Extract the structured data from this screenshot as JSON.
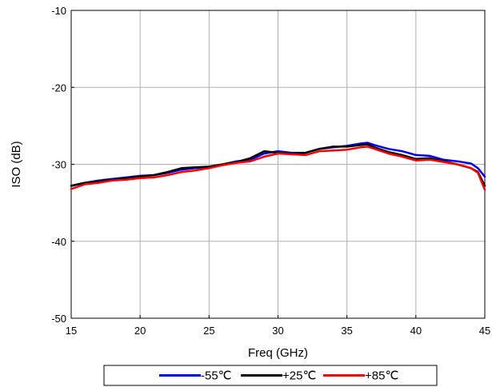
{
  "chart_data": {
    "type": "line",
    "xlabel": "Freq (GHz)",
    "ylabel": "ISO (dB)",
    "xlim": [
      15,
      45
    ],
    "ylim": [
      -50,
      -10
    ],
    "xticks": [
      15,
      20,
      25,
      30,
      35,
      40,
      45
    ],
    "yticks": [
      -50,
      -40,
      -30,
      -20,
      -10
    ],
    "grid": true,
    "legend_position": "bottom",
    "series": [
      {
        "name": "-55℃",
        "color": "#0000ff",
        "x": [
          15,
          16,
          17,
          18,
          19,
          20,
          21,
          22,
          23,
          24,
          25,
          26,
          27,
          28,
          29,
          30,
          31,
          32,
          33,
          34,
          35,
          36,
          36.5,
          37,
          38,
          39,
          40,
          41,
          42,
          43,
          44,
          44.5,
          45
        ],
        "y": [
          -32.8,
          -32.4,
          -32.1,
          -31.9,
          -31.7,
          -31.5,
          -31.4,
          -31.1,
          -30.7,
          -30.5,
          -30.4,
          -30.0,
          -29.6,
          -29.4,
          -28.6,
          -28.3,
          -28.5,
          -28.5,
          -28.0,
          -27.8,
          -27.6,
          -27.3,
          -27.2,
          -27.5,
          -28.0,
          -28.3,
          -28.8,
          -28.9,
          -29.4,
          -29.6,
          -29.9,
          -30.5,
          -31.6
        ]
      },
      {
        "name": "+25℃",
        "color": "#000000",
        "x": [
          15,
          16,
          17,
          18,
          19,
          20,
          21,
          22,
          23,
          24,
          25,
          26,
          27,
          28,
          29,
          30,
          31,
          32,
          33,
          34,
          35,
          36,
          36.5,
          37,
          38,
          39,
          40,
          41,
          42,
          43,
          44,
          44.5,
          45
        ],
        "y": [
          -32.8,
          -32.4,
          -32.2,
          -32.0,
          -31.8,
          -31.6,
          -31.4,
          -31.0,
          -30.5,
          -30.4,
          -30.3,
          -30.0,
          -29.7,
          -29.2,
          -28.3,
          -28.5,
          -28.6,
          -28.5,
          -28.0,
          -27.7,
          -27.7,
          -27.5,
          -27.4,
          -27.8,
          -28.4,
          -28.8,
          -29.3,
          -29.2,
          -29.6,
          -30.0,
          -30.5,
          -31.0,
          -32.8
        ]
      },
      {
        "name": "+85℃",
        "color": "#ff0000",
        "x": [
          15,
          16,
          17,
          18,
          19,
          20,
          21,
          22,
          23,
          24,
          25,
          26,
          27,
          28,
          29,
          30,
          31,
          32,
          33,
          34,
          35,
          36,
          36.5,
          37,
          38,
          39,
          40,
          41,
          42,
          43,
          44,
          44.5,
          45
        ],
        "y": [
          -33.2,
          -32.6,
          -32.4,
          -32.1,
          -32.0,
          -31.8,
          -31.7,
          -31.4,
          -31.0,
          -30.8,
          -30.5,
          -30.1,
          -29.8,
          -29.6,
          -29.0,
          -28.6,
          -28.7,
          -28.8,
          -28.3,
          -28.2,
          -28.1,
          -27.8,
          -27.7,
          -28.0,
          -28.6,
          -29.0,
          -29.5,
          -29.4,
          -29.7,
          -30.0,
          -30.5,
          -31.1,
          -33.3
        ]
      }
    ]
  }
}
